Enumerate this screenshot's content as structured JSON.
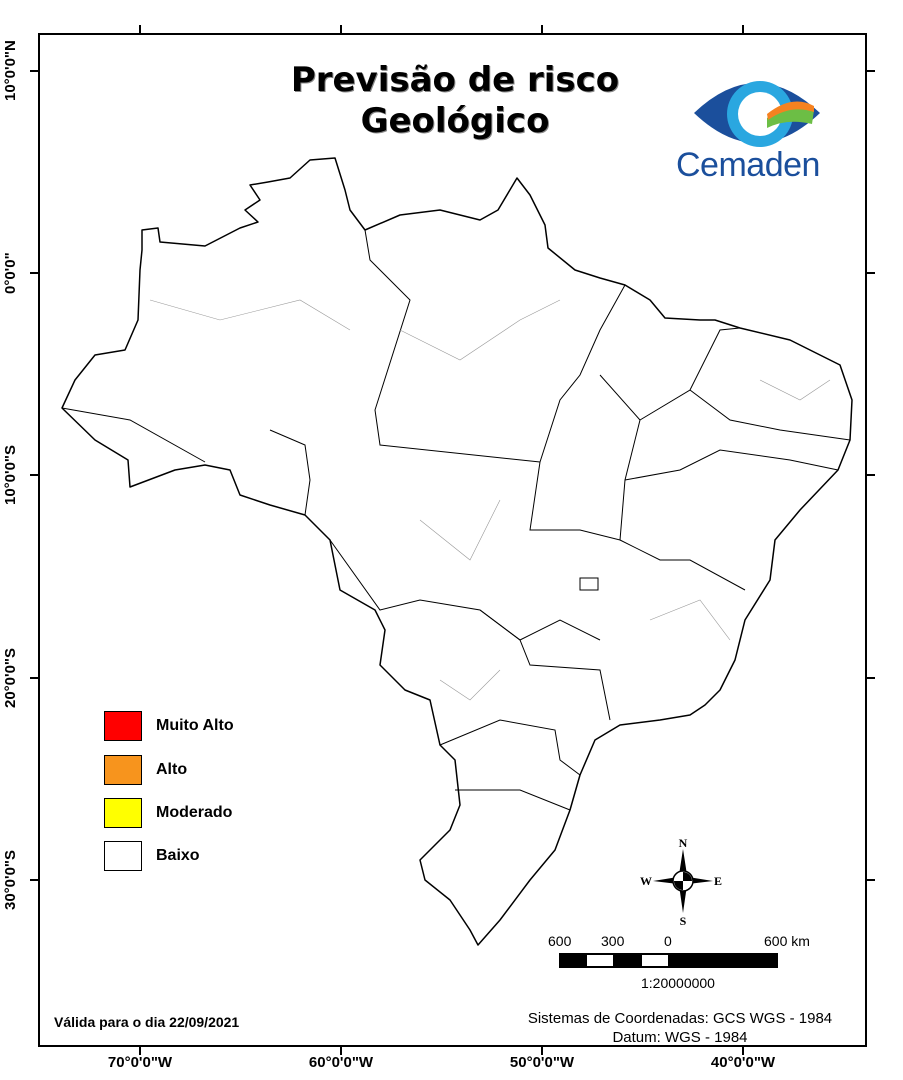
{
  "title_line1": "Previsão de risco",
  "title_line2": "Geológico",
  "logo": {
    "text": "Cemaden",
    "colors": [
      "#1b4f9c",
      "#2aa7e0",
      "#f58220",
      "#6cbe45"
    ]
  },
  "lat_labels": [
    "10°0'0\"N",
    "0°0'0\"",
    "10°0'0\"S",
    "20°0'0\"S",
    "30°0'0\"S"
  ],
  "lon_labels": [
    "70°0'0\"W",
    "60°0'0\"W",
    "50°0'0\"W",
    "40°0'0\"W"
  ],
  "legend": [
    {
      "label": "Muito Alto",
      "color": "#ff0000"
    },
    {
      "label": "Alto",
      "color": "#f7941d"
    },
    {
      "label": "Moderado",
      "color": "#ffff00"
    },
    {
      "label": "Baixo",
      "color": "#ffffff"
    }
  ],
  "compass": {
    "n": "N",
    "s": "S",
    "e": "E",
    "w": "W"
  },
  "scale": {
    "labels": [
      "600",
      "300",
      "0",
      "600 km"
    ],
    "ratio": "1:20000000"
  },
  "validity": "Válida para o dia 22/09/2021",
  "crs": "Sistemas de Coordenadas: GCS WGS - 1984",
  "datum": "Datum: WGS - 1984",
  "risk_level_shown": "Baixo"
}
